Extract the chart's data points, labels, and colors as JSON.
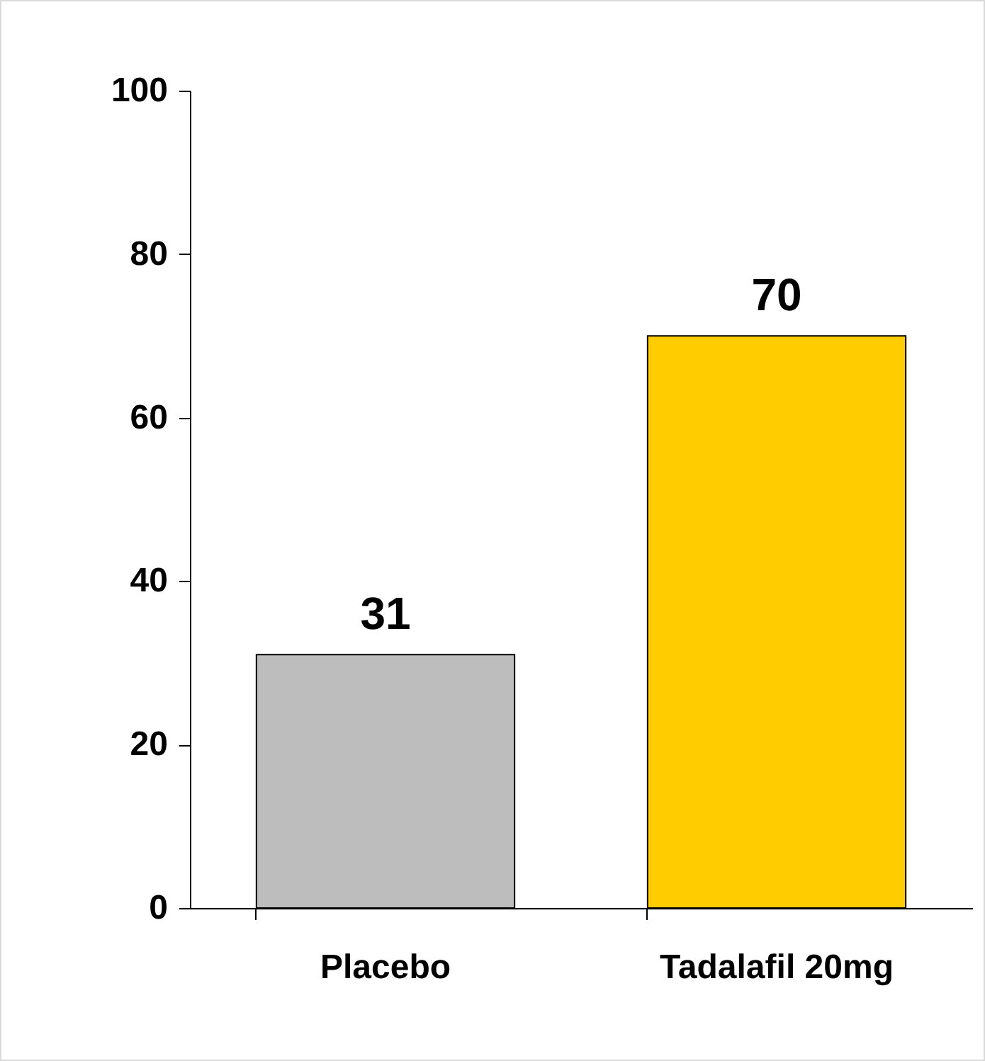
{
  "chart_data": {
    "type": "bar",
    "categories": [
      "Placebo",
      "Tadalafil 20mg"
    ],
    "values": [
      31,
      70
    ],
    "colors": [
      "#bdbdbd",
      "#ffcc00"
    ],
    "ylim": [
      0,
      100
    ],
    "yticks": [
      0,
      20,
      40,
      60,
      80,
      100
    ],
    "data_labels": true
  }
}
